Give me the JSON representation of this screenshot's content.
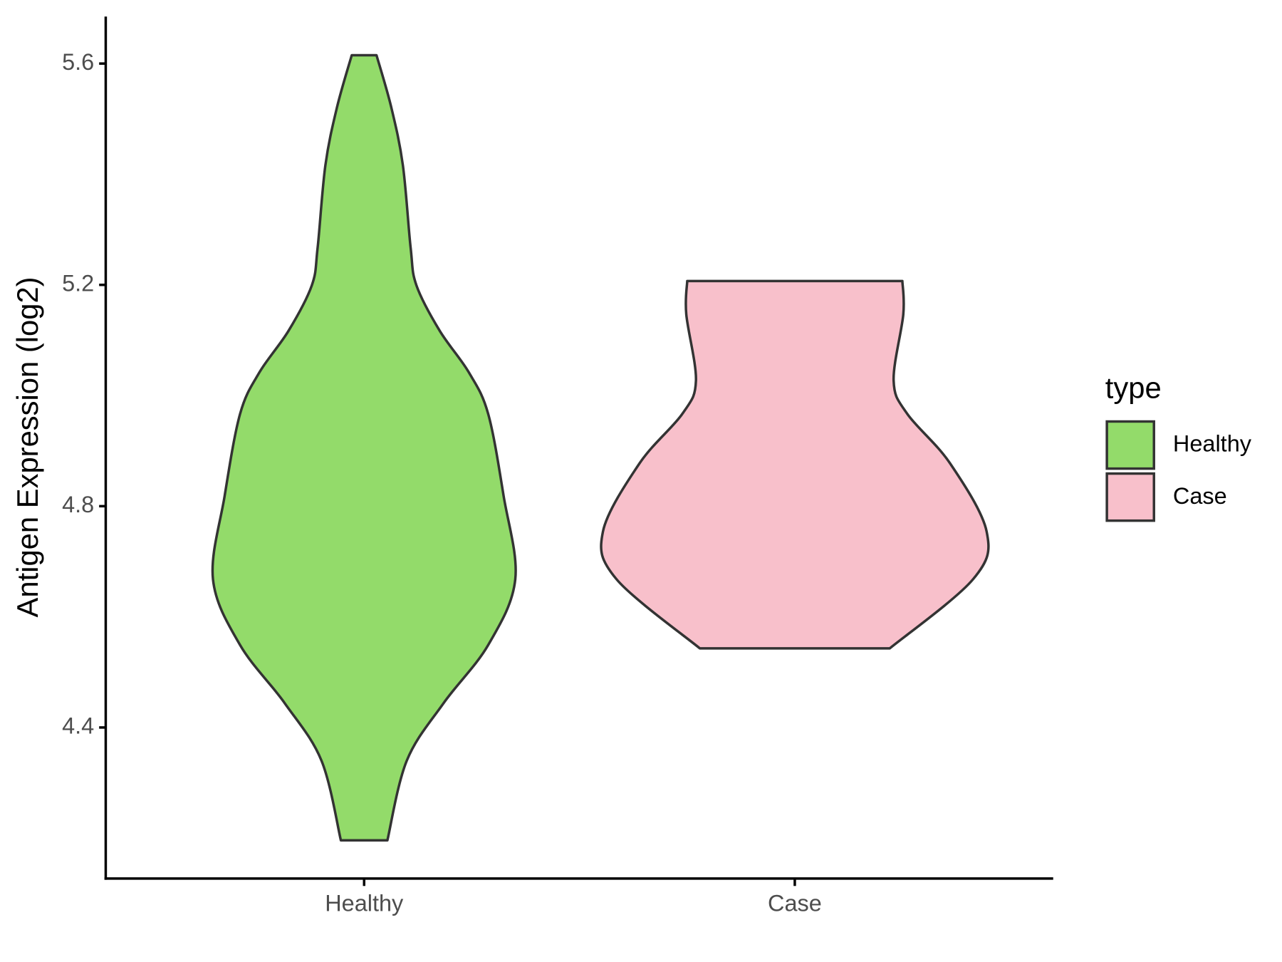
{
  "chart_data": {
    "type": "violin",
    "y_label": "Antigen Expression (log2)",
    "categories": [
      "Healthy",
      "Case"
    ],
    "legend_title": "type",
    "legend": "right",
    "grid": false,
    "ylim": [
      4.127,
      5.685
    ],
    "yticks": [
      4.4,
      4.8,
      5.2,
      5.6
    ],
    "series": [
      {
        "name": "Healthy",
        "color": "#93DB6A",
        "values": [
          5.615,
          5.521,
          5.416,
          5.267,
          5.199,
          5.117,
          5.042,
          4.967,
          4.818,
          4.668,
          4.549,
          4.444,
          4.34,
          4.196
        ],
        "density": [
          0.064,
          0.14,
          0.2,
          0.24,
          0.27,
          0.39,
          0.54,
          0.64,
          0.72,
          0.78,
          0.64,
          0.41,
          0.22,
          0.12
        ]
      },
      {
        "name": "Case",
        "color": "#F8C0CB",
        "values": [
          5.207,
          5.147,
          5.027,
          4.967,
          4.878,
          4.754,
          4.668,
          4.543
        ],
        "density": [
          0.555,
          0.56,
          0.51,
          0.58,
          0.8,
          0.99,
          0.92,
          0.49
        ]
      }
    ]
  }
}
